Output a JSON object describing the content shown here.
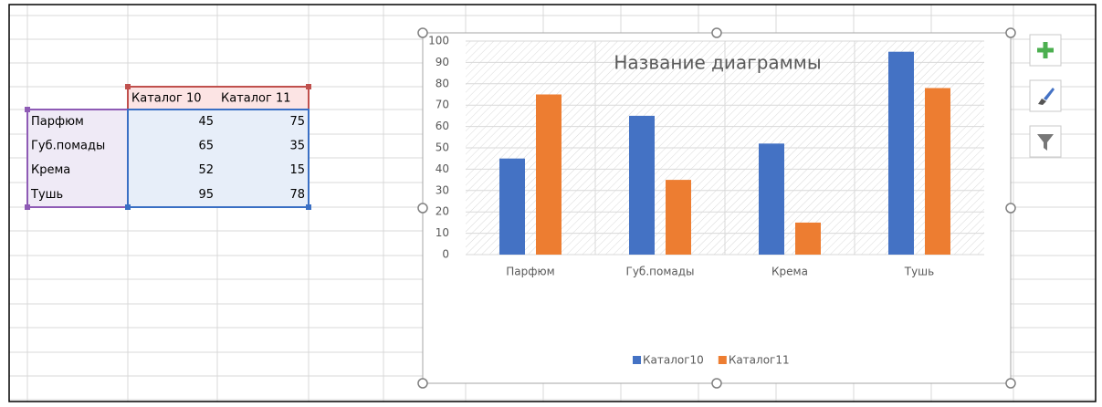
{
  "table": {
    "header": [
      "Каталог 10",
      "Каталог 11"
    ],
    "rows": [
      [
        "Парфюм",
        45,
        75
      ],
      [
        "Губ.помады",
        65,
        35
      ],
      [
        "Крема",
        52,
        15
      ],
      [
        "Тушь",
        95,
        78
      ]
    ]
  },
  "chart_data": {
    "type": "bar",
    "title": "Название диаграммы",
    "categories": [
      "Парфюм",
      "Губ.помады",
      "Крема",
      "Тушь"
    ],
    "series": [
      {
        "name": "Каталог10",
        "color": "#4472c4",
        "values": [
          45,
          65,
          52,
          95
        ]
      },
      {
        "name": "Каталог11",
        "color": "#ed7d31",
        "values": [
          75,
          35,
          15,
          78
        ]
      }
    ],
    "ylim": [
      0,
      100
    ],
    "yticks": [
      0,
      10,
      20,
      30,
      40,
      50,
      60,
      70,
      80,
      90,
      100
    ],
    "grid": true,
    "legend": "bottom"
  }
}
